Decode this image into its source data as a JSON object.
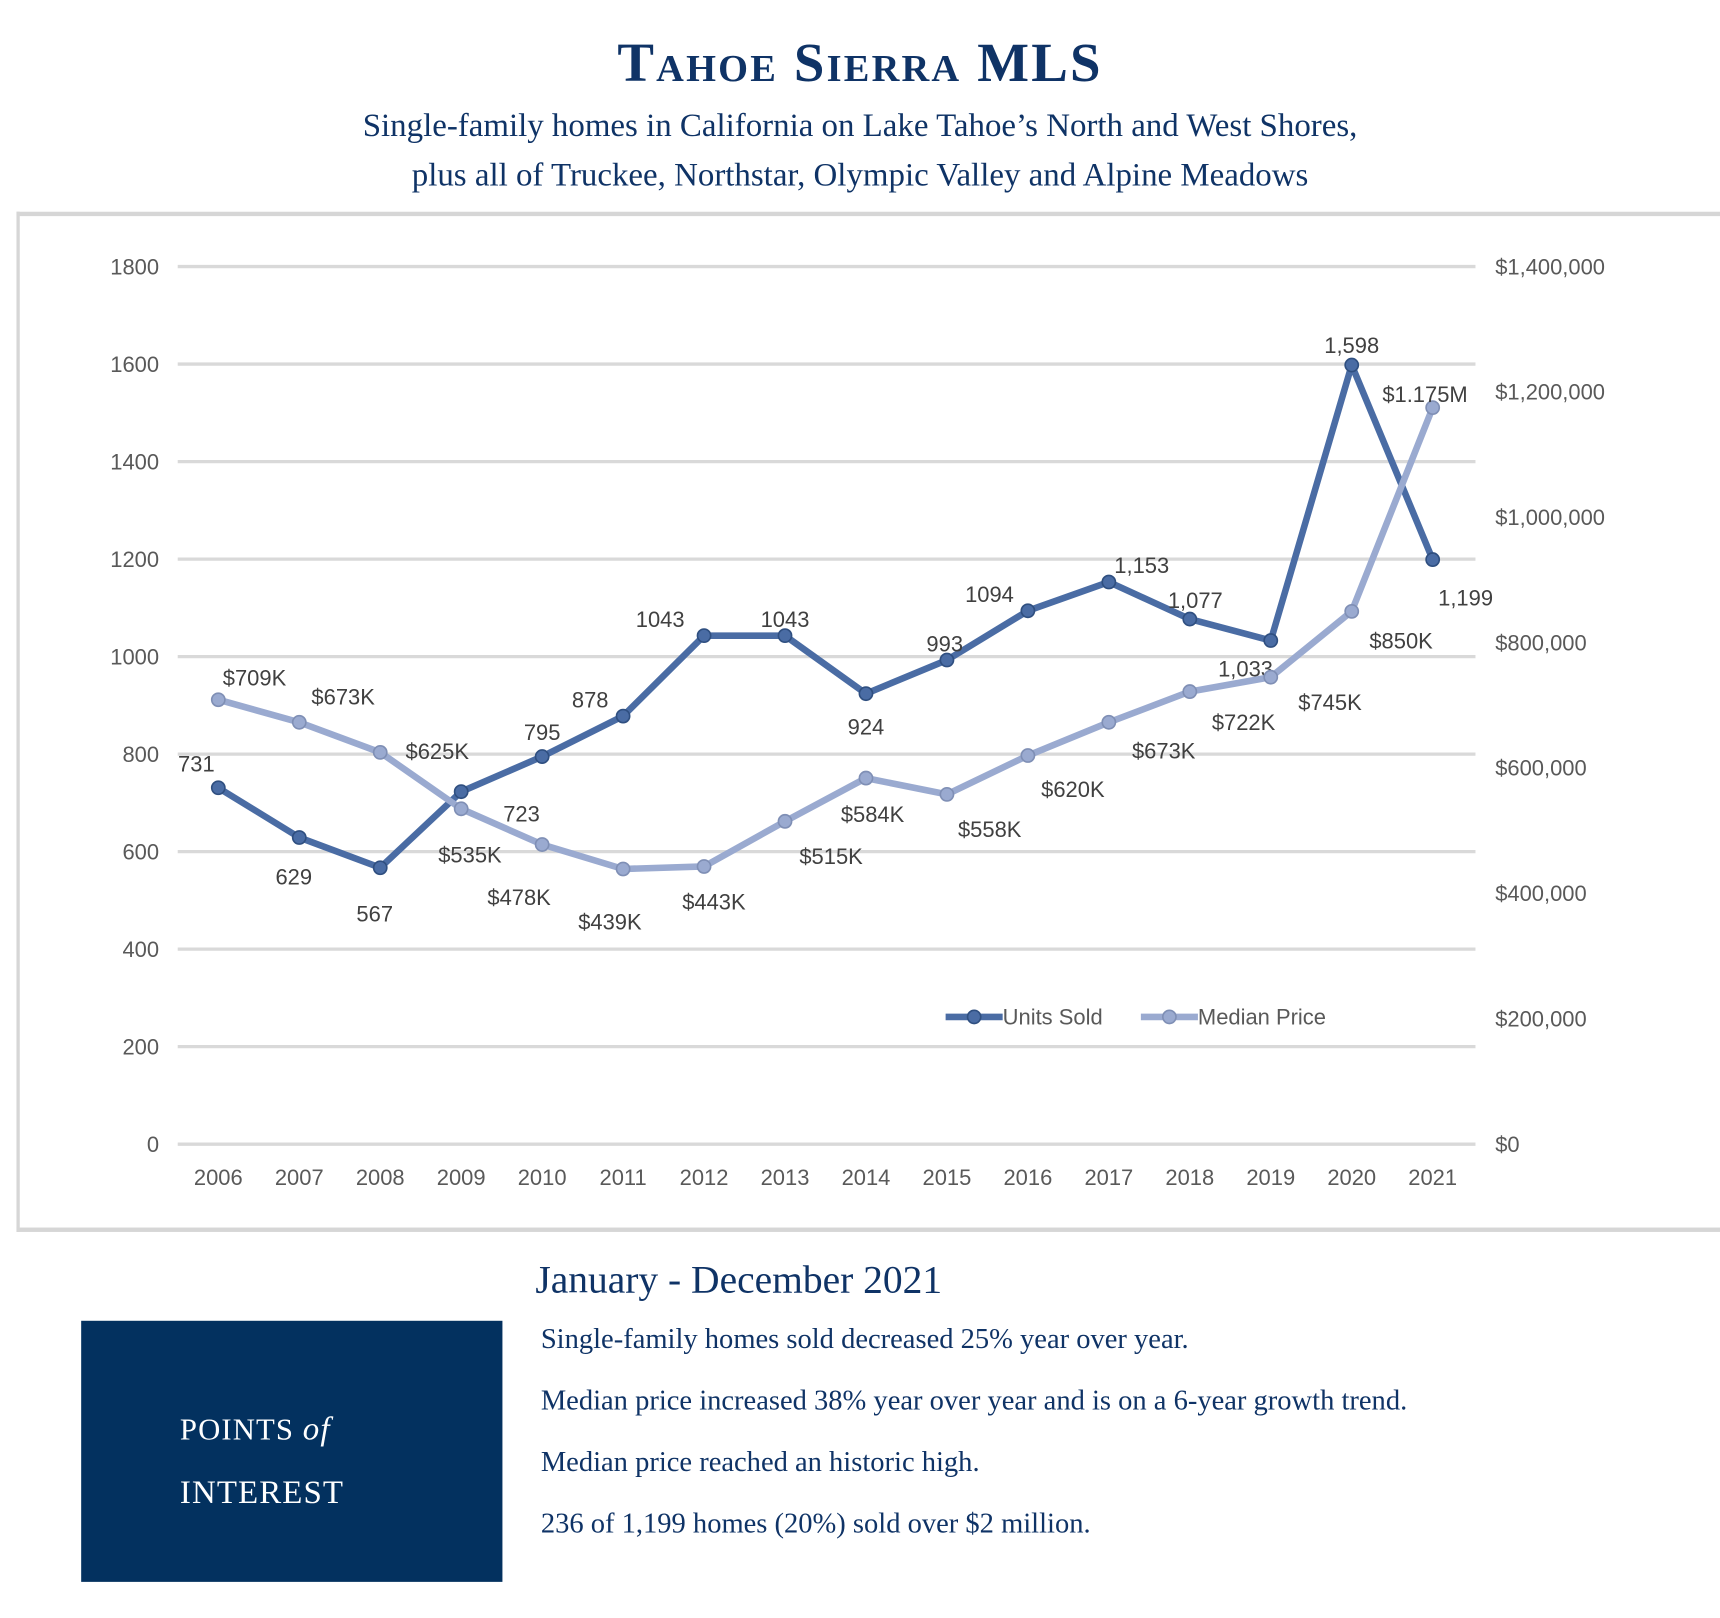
{
  "header": {
    "title": "Tahoe Sierra MLS",
    "subtitle_line1": "Single-family homes in California on Lake Tahoe’s North and West Shores,",
    "subtitle_line2": "plus all of Truckee, Northstar, Olympic Valley and Alpine Meadows"
  },
  "chart_data": {
    "type": "line",
    "categories": [
      "2006",
      "2007",
      "2008",
      "2009",
      "2010",
      "2011",
      "2012",
      "2013",
      "2014",
      "2015",
      "2016",
      "2017",
      "2018",
      "2019",
      "2020",
      "2021"
    ],
    "series": [
      {
        "name": "Units Sold",
        "axis": "left",
        "color": "#4a6ca4",
        "values": [
          731,
          629,
          567,
          723,
          795,
          878,
          1043,
          1043,
          924,
          993,
          1094,
          1153,
          1077,
          1033,
          1598,
          1199
        ],
        "labels": [
          "731",
          "629",
          "567",
          "723",
          "795",
          "878",
          "1043",
          "1043",
          "924",
          "993",
          "1094",
          "1,153",
          "1,077",
          "1,033",
          "1,598",
          "1,199"
        ]
      },
      {
        "name": "Median Price",
        "axis": "right",
        "color": "#9aaad0",
        "values": [
          709000,
          673000,
          625000,
          535000,
          478000,
          439000,
          443000,
          515000,
          584000,
          558000,
          620000,
          673000,
          722000,
          745000,
          850000,
          1175000
        ],
        "labels": [
          "$709K",
          "$673K",
          "$625K",
          "$535K",
          "$478K",
          "$439K",
          "$443K",
          "$515K",
          "$584K",
          "$558K",
          "$620K",
          "$673K",
          "$722K",
          "$745K",
          "$850K",
          "$1.175M"
        ]
      }
    ],
    "left_axis": {
      "min": 0,
      "max": 1800,
      "ticks": [
        "0",
        "200",
        "400",
        "600",
        "800",
        "1000",
        "1200",
        "1400",
        "1600",
        "1800"
      ]
    },
    "right_axis": {
      "min": 0,
      "max": 1400000,
      "ticks": [
        "$0",
        "$200,000",
        "$400,000",
        "$600,000",
        "$800,000",
        "$1,000,000",
        "$1,200,000",
        "$1,400,000"
      ]
    },
    "grid": true,
    "legend": "bottom-right"
  },
  "points": {
    "period": "January - December 2021",
    "box_line1": "POINTS",
    "box_of": "of",
    "box_line2": "INTEREST",
    "items": [
      "Single-family homes sold decreased 25% year over year.",
      "Median price increased 38% year over year and is on a 6-year growth trend.",
      "Median price reached an historic high.",
      "236 of 1,199 homes (20%) sold over $2 million."
    ]
  }
}
